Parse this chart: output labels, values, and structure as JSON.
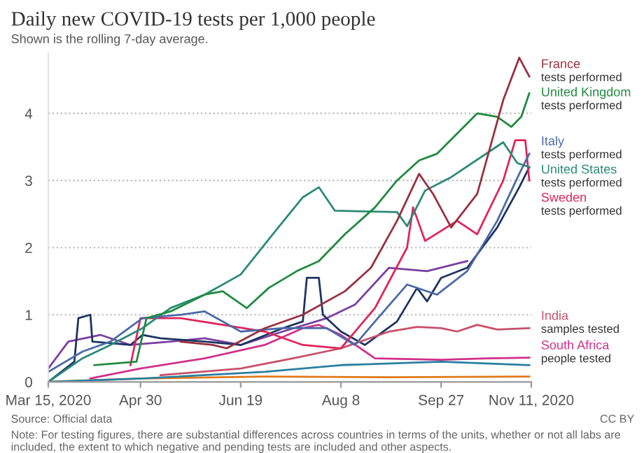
{
  "chart_data": {
    "type": "line",
    "title": "Daily new COVID-19 tests per 1,000 people",
    "subtitle": "Shown is the rolling 7-day average.",
    "xlim": [
      "2020-03-15",
      "2020-11-11"
    ],
    "xticks": [
      {
        "value": "2020-03-15",
        "label": "Mar 15, 2020"
      },
      {
        "value": "2020-04-30",
        "label": "Apr 30"
      },
      {
        "value": "2020-06-19",
        "label": "Jun 19"
      },
      {
        "value": "2020-08-08",
        "label": "Aug 8"
      },
      {
        "value": "2020-09-27",
        "label": "Sep 27"
      },
      {
        "value": "2020-11-11",
        "label": "Nov 11, 2020"
      }
    ],
    "ylim": [
      0,
      4.9
    ],
    "yticks": [
      0,
      1,
      2,
      3,
      4
    ],
    "grid": "y",
    "legend": false,
    "line_style": "solid",
    "marker": "none",
    "series": [
      {
        "color": "#e07a1a",
        "x": [
          "2020-03-15",
          "2020-05-01",
          "2020-07-01",
          "2020-09-01",
          "2020-11-10"
        ],
        "values": [
          0.0,
          0.05,
          0.08,
          0.07,
          0.08
        ]
      },
      {
        "color": "#2a7fa0",
        "x": [
          "2020-03-15",
          "2020-05-01",
          "2020-07-01",
          "2020-08-08",
          "2020-09-27",
          "2020-11-10"
        ],
        "values": [
          0.0,
          0.05,
          0.15,
          0.25,
          0.3,
          0.25
        ]
      },
      {
        "color": "#7b3fa0",
        "x": [
          "2020-03-15",
          "2020-03-25",
          "2020-04-10",
          "2020-04-25",
          "2020-05-15",
          "2020-06-01",
          "2020-06-19",
          "2020-07-10",
          "2020-08-01",
          "2020-08-15",
          "2020-09-01",
          "2020-09-20",
          "2020-10-10"
        ],
        "values": [
          0.2,
          0.6,
          0.7,
          0.55,
          0.6,
          0.65,
          0.55,
          0.75,
          0.95,
          1.15,
          1.7,
          1.65,
          1.8
        ]
      },
      {
        "color": "#1d3461",
        "x": [
          "2020-03-15",
          "2020-03-28",
          "2020-03-30",
          "2020-04-05",
          "2020-04-06",
          "2020-04-25",
          "2020-05-01",
          "2020-05-10",
          "2020-06-01",
          "2020-06-19",
          "2020-07-10",
          "2020-07-20",
          "2020-07-22",
          "2020-07-28",
          "2020-07-30",
          "2020-08-08",
          "2020-08-20",
          "2020-09-05",
          "2020-09-15",
          "2020-09-20",
          "2020-09-27",
          "2020-10-10",
          "2020-10-25",
          "2020-11-05",
          "2020-11-10"
        ],
        "values": [
          0.0,
          0.3,
          0.95,
          1.0,
          0.6,
          0.55,
          0.7,
          0.65,
          0.6,
          0.55,
          0.8,
          0.9,
          1.55,
          1.55,
          1.0,
          0.75,
          0.55,
          0.9,
          1.4,
          1.2,
          1.55,
          1.7,
          2.3,
          2.9,
          3.2
        ]
      },
      {
        "name": "South Africa",
        "color": "#d22f8c",
        "x": [
          "2020-04-05",
          "2020-04-30",
          "2020-06-01",
          "2020-07-01",
          "2020-07-20",
          "2020-07-28",
          "2020-08-08",
          "2020-08-25",
          "2020-09-27",
          "2020-10-20",
          "2020-11-10"
        ],
        "values": [
          0.05,
          0.2,
          0.35,
          0.55,
          0.8,
          0.85,
          0.7,
          0.35,
          0.33,
          0.35,
          0.36
        ]
      },
      {
        "name": "India",
        "color": "#c8506a",
        "x": [
          "2020-05-10",
          "2020-06-19",
          "2020-07-15",
          "2020-08-08",
          "2020-09-01",
          "2020-09-15",
          "2020-09-27",
          "2020-10-05",
          "2020-10-15",
          "2020-10-25",
          "2020-11-10"
        ],
        "values": [
          0.1,
          0.2,
          0.35,
          0.5,
          0.75,
          0.82,
          0.8,
          0.75,
          0.85,
          0.78,
          0.8
        ]
      },
      {
        "name": "Sweden",
        "color": "#e0245a",
        "x": [
          "2020-04-25",
          "2020-04-30",
          "2020-05-20",
          "2020-06-10",
          "2020-07-01",
          "2020-07-20",
          "2020-08-08",
          "2020-08-25",
          "2020-09-10",
          "2020-09-13",
          "2020-09-19",
          "2020-10-05",
          "2020-10-15",
          "2020-10-28",
          "2020-11-03",
          "2020-11-08",
          "2020-11-10"
        ],
        "values": [
          0.25,
          0.95,
          0.95,
          0.85,
          0.75,
          0.55,
          0.5,
          1.1,
          2.0,
          2.6,
          2.1,
          2.4,
          2.2,
          3.0,
          3.6,
          3.6,
          3.0
        ]
      },
      {
        "name": "United States",
        "color": "#2a8a78",
        "x": [
          "2020-03-15",
          "2020-04-01",
          "2020-04-15",
          "2020-05-01",
          "2020-05-15",
          "2020-06-01",
          "2020-06-19",
          "2020-07-05",
          "2020-07-20",
          "2020-07-28",
          "2020-08-05",
          "2020-09-05",
          "2020-09-10",
          "2020-09-19",
          "2020-10-02",
          "2020-10-28",
          "2020-11-04",
          "2020-11-10"
        ],
        "values": [
          0.0,
          0.35,
          0.55,
          0.8,
          1.1,
          1.3,
          1.6,
          2.2,
          2.75,
          2.9,
          2.55,
          2.53,
          2.32,
          2.85,
          3.05,
          3.57,
          3.26,
          3.2
        ]
      },
      {
        "name": "Italy",
        "color": "#4a6aa8",
        "x": [
          "2020-03-15",
          "2020-04-01",
          "2020-04-15",
          "2020-05-01",
          "2020-05-20",
          "2020-06-01",
          "2020-06-19",
          "2020-07-10",
          "2020-08-01",
          "2020-08-15",
          "2020-08-25",
          "2020-09-10",
          "2020-09-25",
          "2020-10-10",
          "2020-10-25",
          "2020-11-05",
          "2020-11-10"
        ],
        "values": [
          0.15,
          0.45,
          0.6,
          0.95,
          1.0,
          1.05,
          0.75,
          0.8,
          0.8,
          0.55,
          0.9,
          1.45,
          1.3,
          1.65,
          2.4,
          3.1,
          3.4
        ]
      },
      {
        "name": "United Kingdom",
        "color": "#1f8a3e",
        "x": [
          "2020-04-07",
          "2020-04-28",
          "2020-05-03",
          "2020-05-15",
          "2020-06-01",
          "2020-06-10",
          "2020-06-22",
          "2020-07-03",
          "2020-07-17",
          "2020-07-28",
          "2020-08-10",
          "2020-08-25",
          "2020-09-05",
          "2020-09-16",
          "2020-09-25",
          "2020-10-05",
          "2020-10-15",
          "2020-10-25",
          "2020-11-01",
          "2020-11-06",
          "2020-11-10"
        ],
        "values": [
          0.25,
          0.3,
          0.95,
          1.05,
          1.3,
          1.35,
          1.1,
          1.4,
          1.65,
          1.8,
          2.2,
          2.6,
          3.0,
          3.3,
          3.4,
          3.7,
          4.0,
          3.95,
          3.8,
          3.95,
          4.3
        ]
      },
      {
        "name": "France",
        "color": "#9a2f3f",
        "x": [
          "2020-05-20",
          "2020-06-05",
          "2020-06-12",
          "2020-07-01",
          "2020-07-20",
          "2020-08-10",
          "2020-08-23",
          "2020-09-05",
          "2020-09-16",
          "2020-09-23",
          "2020-10-02",
          "2020-10-15",
          "2020-10-28",
          "2020-11-05",
          "2020-11-10"
        ],
        "values": [
          0.6,
          0.55,
          0.5,
          0.8,
          1.0,
          1.35,
          1.7,
          2.4,
          3.1,
          2.8,
          2.3,
          2.8,
          4.2,
          4.83,
          4.55
        ]
      }
    ],
    "annotations": [
      {
        "text": "tests performed",
        "x": "2020-11-10",
        "y": 4.55
      },
      {
        "text": "tests performed",
        "x": "2020-11-10",
        "y": 4.3
      },
      {
        "text": "tests performed",
        "x": "2020-11-10",
        "y": 3.4
      },
      {
        "text": "tests performed",
        "x": "2020-11-10",
        "y": 3.2
      },
      {
        "text": "tests performed",
        "x": "2020-11-10",
        "y": 3.0
      },
      {
        "text": "samples tested",
        "x": "2020-11-10",
        "y": 0.8
      },
      {
        "text": "people tested",
        "x": "2020-11-10",
        "y": 0.36
      },
      "Source: Official data",
      "CC BY",
      "Note: For testing figures, there are substantial differences across countries in terms of the units, whether or not all labs are included, the extent to which negative and pending tests are included and other aspects."
    ]
  }
}
